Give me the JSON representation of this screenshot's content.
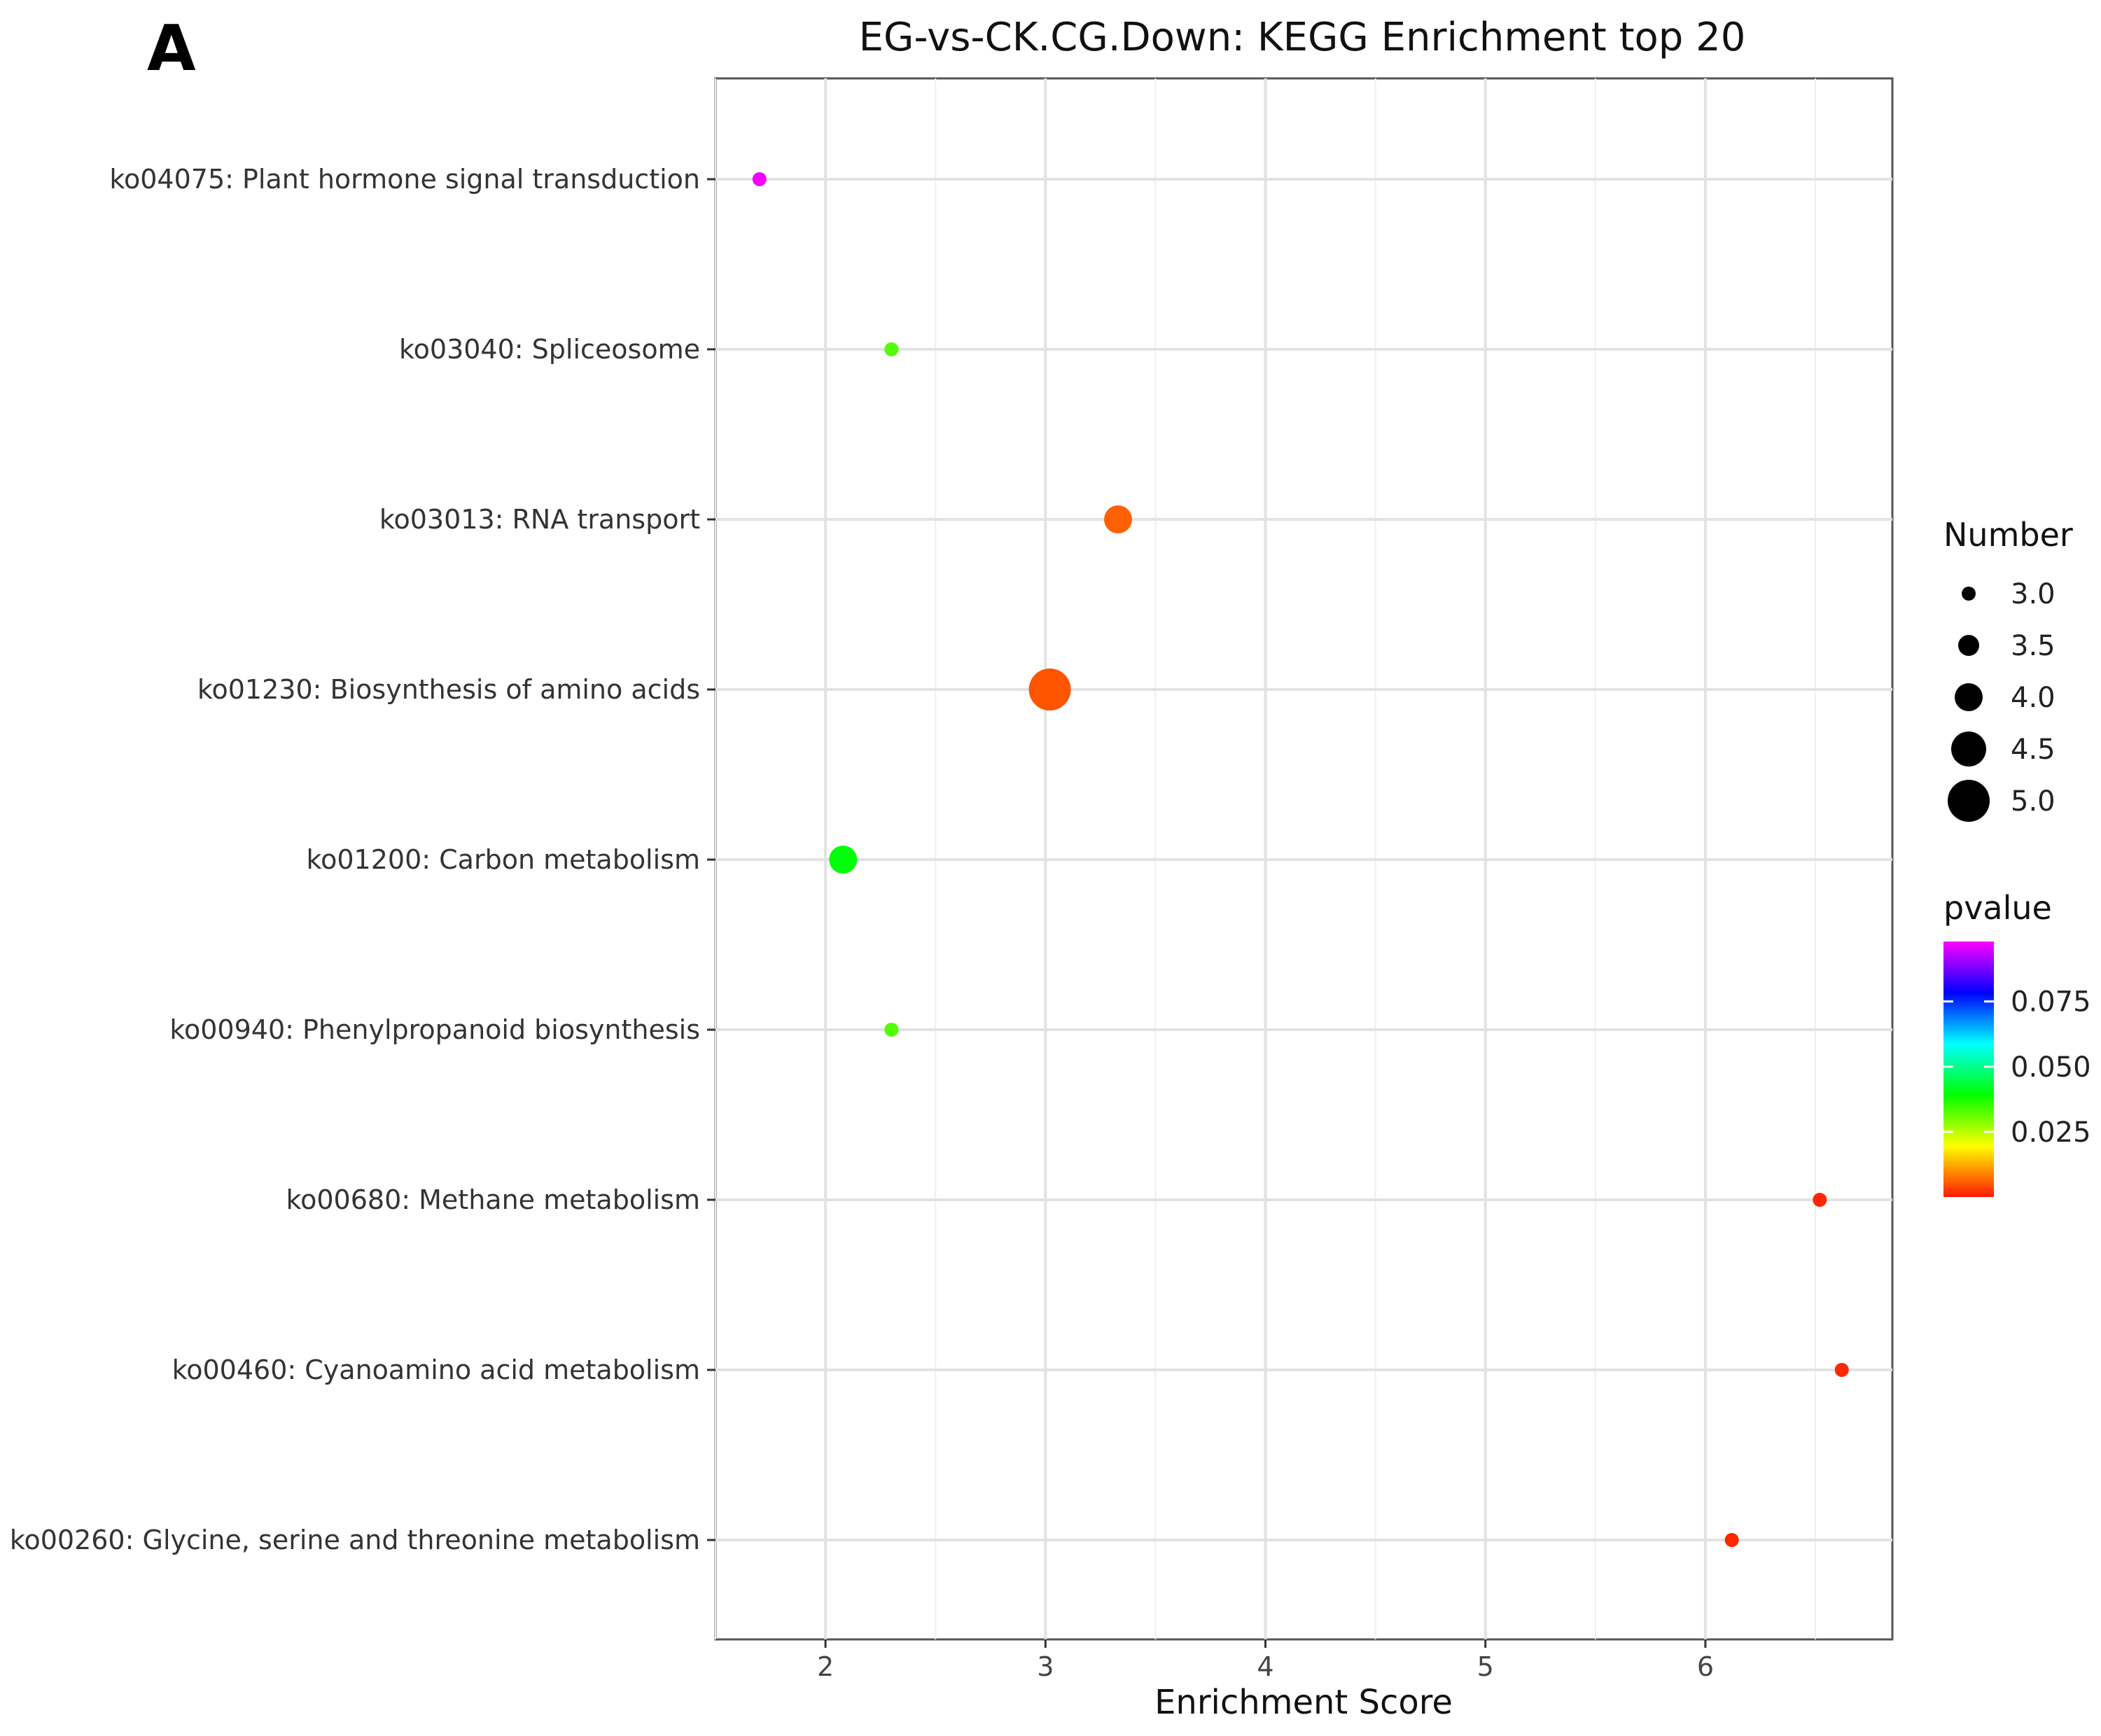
{
  "panel_letter": "A",
  "chart_data": {
    "type": "scatter",
    "title": "EG-vs-CK.CG.Down: KEGG Enrichment top 20",
    "xlabel": "Enrichment Score",
    "ylabel": "",
    "xlim": [
      1.5,
      6.85
    ],
    "x_ticks": [
      2,
      3,
      4,
      5,
      6
    ],
    "grid": true,
    "categories": [
      "ko04075: Plant hormone signal transduction",
      "ko03040: Spliceosome",
      "ko03013: RNA transport",
      "ko01230: Biosynthesis of amino acids",
      "ko01200: Carbon metabolism",
      "ko00940: Phenylpropanoid biosynthesis",
      "ko00680: Methane metabolism",
      "ko00460: Cyanoamino acid metabolism",
      "ko00260: Glycine, serine and threonine metabolism"
    ],
    "points": [
      {
        "category": "ko04075: Plant hormone signal transduction",
        "x": 1.7,
        "number": 3,
        "pvalue": 0.097
      },
      {
        "category": "ko03040: Spliceosome",
        "x": 2.3,
        "number": 3,
        "pvalue": 0.033
      },
      {
        "category": "ko03013: RNA transport",
        "x": 3.33,
        "number": 4,
        "pvalue": 0.006
      },
      {
        "category": "ko01230: Biosynthesis of amino acids",
        "x": 3.02,
        "number": 5,
        "pvalue": 0.005
      },
      {
        "category": "ko01200: Carbon metabolism",
        "x": 2.08,
        "number": 4,
        "pvalue": 0.04
      },
      {
        "category": "ko00940: Phenylpropanoid biosynthesis",
        "x": 2.3,
        "number": 3,
        "pvalue": 0.033
      },
      {
        "category": "ko00680: Methane metabolism",
        "x": 6.52,
        "number": 3,
        "pvalue": 0.001
      },
      {
        "category": "ko00460: Cyanoamino acid metabolism",
        "x": 6.62,
        "number": 3,
        "pvalue": 0.001
      },
      {
        "category": "ko00260: Glycine, serine and threonine metabolism",
        "x": 6.12,
        "number": 3,
        "pvalue": 0.001
      }
    ],
    "size_legend": {
      "title": "Number",
      "values": [
        3.0,
        3.5,
        4.0,
        4.5,
        5.0
      ],
      "labels": [
        "3.0",
        "3.5",
        "4.0",
        "4.5",
        "5.0"
      ]
    },
    "color_legend": {
      "title": "pvalue",
      "range": [
        0,
        0.098
      ],
      "tick_values": [
        0.075,
        0.05,
        0.025
      ],
      "tick_labels": [
        "0.075",
        "0.050",
        "0.025"
      ],
      "colors": [
        "#ff1a00",
        "#ffff00",
        "#00ff00",
        "#00ffff",
        "#0000ff",
        "#ff00ff"
      ]
    },
    "legend_position": "right"
  }
}
